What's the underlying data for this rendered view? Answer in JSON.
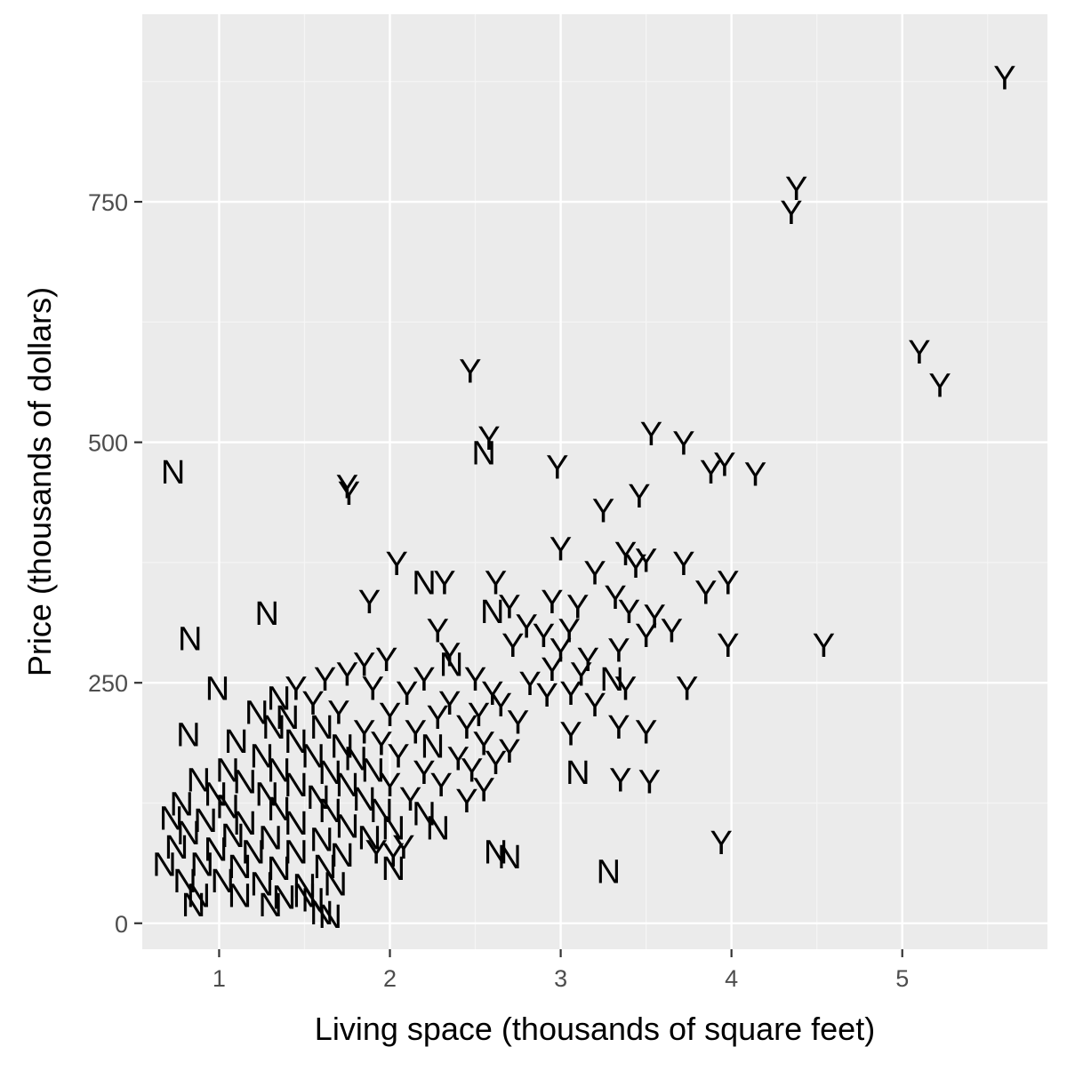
{
  "colors": {
    "panel_background": "#ebebeb",
    "grid_major": "#ffffff",
    "grid_minor": "#f5f5f5",
    "tick": "#333333",
    "tick_label": "#4d4d4d",
    "text": "#000000"
  },
  "chart_data": {
    "type": "scatter",
    "mark": "text",
    "xlabel": "Living space (thousands of square feet)",
    "ylabel": "Price (thousands of dollars)",
    "xlim": [
      0.55,
      5.85
    ],
    "ylim": [
      -27,
      945
    ],
    "x_ticks": [
      1,
      2,
      3,
      4,
      5
    ],
    "y_ticks": [
      0,
      250,
      500,
      750
    ],
    "x_tick_labels": [
      "1",
      "2",
      "3",
      "4",
      "5"
    ],
    "y_tick_labels": [
      "0",
      "250",
      "500",
      "750"
    ],
    "grid": true,
    "legend": "none",
    "points": [
      {
        "x": 5.6,
        "y": 880,
        "label": "Y"
      },
      {
        "x": 4.38,
        "y": 765,
        "label": "Y"
      },
      {
        "x": 4.35,
        "y": 740,
        "label": "Y"
      },
      {
        "x": 5.1,
        "y": 595,
        "label": "Y"
      },
      {
        "x": 5.22,
        "y": 560,
        "label": "Y"
      },
      {
        "x": 2.47,
        "y": 575,
        "label": "Y"
      },
      {
        "x": 2.58,
        "y": 505,
        "label": "Y"
      },
      {
        "x": 2.55,
        "y": 490,
        "label": "N"
      },
      {
        "x": 3.53,
        "y": 510,
        "label": "Y"
      },
      {
        "x": 3.72,
        "y": 500,
        "label": "Y"
      },
      {
        "x": 3.88,
        "y": 470,
        "label": "Y"
      },
      {
        "x": 3.96,
        "y": 478,
        "label": "Y"
      },
      {
        "x": 4.14,
        "y": 468,
        "label": "Y"
      },
      {
        "x": 2.98,
        "y": 475,
        "label": "Y"
      },
      {
        "x": 3.46,
        "y": 445,
        "label": "Y"
      },
      {
        "x": 3.25,
        "y": 430,
        "label": "Y"
      },
      {
        "x": 0.73,
        "y": 470,
        "label": "N"
      },
      {
        "x": 1.75,
        "y": 455,
        "label": "Y"
      },
      {
        "x": 1.76,
        "y": 448,
        "label": "Y"
      },
      {
        "x": 3.0,
        "y": 390,
        "label": "Y"
      },
      {
        "x": 3.38,
        "y": 385,
        "label": "Y"
      },
      {
        "x": 3.5,
        "y": 378,
        "label": "Y"
      },
      {
        "x": 3.72,
        "y": 375,
        "label": "Y"
      },
      {
        "x": 3.2,
        "y": 365,
        "label": "Y"
      },
      {
        "x": 3.44,
        "y": 372,
        "label": "Y"
      },
      {
        "x": 2.04,
        "y": 375,
        "label": "Y"
      },
      {
        "x": 2.2,
        "y": 355,
        "label": "N"
      },
      {
        "x": 2.32,
        "y": 355,
        "label": "Y"
      },
      {
        "x": 2.62,
        "y": 355,
        "label": "Y"
      },
      {
        "x": 3.85,
        "y": 345,
        "label": "Y"
      },
      {
        "x": 3.98,
        "y": 355,
        "label": "Y"
      },
      {
        "x": 1.88,
        "y": 335,
        "label": "Y"
      },
      {
        "x": 1.28,
        "y": 323,
        "label": "N"
      },
      {
        "x": 2.6,
        "y": 325,
        "label": "N"
      },
      {
        "x": 2.7,
        "y": 330,
        "label": "Y"
      },
      {
        "x": 2.95,
        "y": 335,
        "label": "Y"
      },
      {
        "x": 3.1,
        "y": 330,
        "label": "Y"
      },
      {
        "x": 3.32,
        "y": 340,
        "label": "Y"
      },
      {
        "x": 3.4,
        "y": 325,
        "label": "Y"
      },
      {
        "x": 3.55,
        "y": 320,
        "label": "Y"
      },
      {
        "x": 2.28,
        "y": 305,
        "label": "Y"
      },
      {
        "x": 2.8,
        "y": 310,
        "label": "Y"
      },
      {
        "x": 2.9,
        "y": 300,
        "label": "Y"
      },
      {
        "x": 3.05,
        "y": 305,
        "label": "Y"
      },
      {
        "x": 3.5,
        "y": 300,
        "label": "Y"
      },
      {
        "x": 3.65,
        "y": 305,
        "label": "Y"
      },
      {
        "x": 0.83,
        "y": 297,
        "label": "N"
      },
      {
        "x": 3.98,
        "y": 290,
        "label": "Y"
      },
      {
        "x": 4.54,
        "y": 290,
        "label": "Y"
      },
      {
        "x": 2.35,
        "y": 280,
        "label": "Y"
      },
      {
        "x": 2.72,
        "y": 290,
        "label": "Y"
      },
      {
        "x": 3.0,
        "y": 285,
        "label": "Y"
      },
      {
        "x": 3.16,
        "y": 275,
        "label": "Y"
      },
      {
        "x": 3.34,
        "y": 285,
        "label": "Y"
      },
      {
        "x": 1.98,
        "y": 275,
        "label": "Y"
      },
      {
        "x": 2.36,
        "y": 270,
        "label": "N"
      },
      {
        "x": 2.95,
        "y": 265,
        "label": "Y"
      },
      {
        "x": 3.12,
        "y": 260,
        "label": "Y"
      },
      {
        "x": 1.85,
        "y": 270,
        "label": "Y"
      },
      {
        "x": 3.3,
        "y": 255,
        "label": "N"
      },
      {
        "x": 3.38,
        "y": 245,
        "label": "Y"
      },
      {
        "x": 1.62,
        "y": 255,
        "label": "Y"
      },
      {
        "x": 1.75,
        "y": 260,
        "label": "Y"
      },
      {
        "x": 2.2,
        "y": 255,
        "label": "Y"
      },
      {
        "x": 2.5,
        "y": 255,
        "label": "Y"
      },
      {
        "x": 2.82,
        "y": 250,
        "label": "Y"
      },
      {
        "x": 3.74,
        "y": 245,
        "label": "Y"
      },
      {
        "x": 0.99,
        "y": 245,
        "label": "N"
      },
      {
        "x": 1.45,
        "y": 245,
        "label": "Y"
      },
      {
        "x": 1.9,
        "y": 245,
        "label": "Y"
      },
      {
        "x": 2.1,
        "y": 240,
        "label": "Y"
      },
      {
        "x": 2.6,
        "y": 240,
        "label": "Y"
      },
      {
        "x": 2.92,
        "y": 238,
        "label": "Y"
      },
      {
        "x": 3.06,
        "y": 240,
        "label": "Y"
      },
      {
        "x": 1.35,
        "y": 235,
        "label": "N"
      },
      {
        "x": 1.55,
        "y": 230,
        "label": "Y"
      },
      {
        "x": 2.35,
        "y": 230,
        "label": "Y"
      },
      {
        "x": 2.65,
        "y": 228,
        "label": "Y"
      },
      {
        "x": 3.2,
        "y": 228,
        "label": "Y"
      },
      {
        "x": 1.22,
        "y": 220,
        "label": "N"
      },
      {
        "x": 1.4,
        "y": 215,
        "label": "N"
      },
      {
        "x": 1.7,
        "y": 220,
        "label": "Y"
      },
      {
        "x": 2.0,
        "y": 218,
        "label": "Y"
      },
      {
        "x": 2.28,
        "y": 215,
        "label": "Y"
      },
      {
        "x": 2.52,
        "y": 218,
        "label": "Y"
      },
      {
        "x": 2.75,
        "y": 210,
        "label": "Y"
      },
      {
        "x": 1.32,
        "y": 205,
        "label": "N"
      },
      {
        "x": 1.6,
        "y": 205,
        "label": "N"
      },
      {
        "x": 1.85,
        "y": 200,
        "label": "Y"
      },
      {
        "x": 2.15,
        "y": 200,
        "label": "Y"
      },
      {
        "x": 2.45,
        "y": 205,
        "label": "Y"
      },
      {
        "x": 3.34,
        "y": 205,
        "label": "Y"
      },
      {
        "x": 3.5,
        "y": 200,
        "label": "Y"
      },
      {
        "x": 3.06,
        "y": 198,
        "label": "Y"
      },
      {
        "x": 0.82,
        "y": 197,
        "label": "N"
      },
      {
        "x": 1.1,
        "y": 190,
        "label": "N"
      },
      {
        "x": 1.45,
        "y": 190,
        "label": "N"
      },
      {
        "x": 1.72,
        "y": 185,
        "label": "N"
      },
      {
        "x": 1.95,
        "y": 188,
        "label": "Y"
      },
      {
        "x": 2.25,
        "y": 185,
        "label": "N"
      },
      {
        "x": 2.55,
        "y": 188,
        "label": "Y"
      },
      {
        "x": 2.7,
        "y": 180,
        "label": "Y"
      },
      {
        "x": 1.25,
        "y": 175,
        "label": "N"
      },
      {
        "x": 1.55,
        "y": 175,
        "label": "N"
      },
      {
        "x": 1.8,
        "y": 172,
        "label": "N"
      },
      {
        "x": 2.05,
        "y": 175,
        "label": "Y"
      },
      {
        "x": 2.4,
        "y": 172,
        "label": "Y"
      },
      {
        "x": 2.62,
        "y": 168,
        "label": "Y"
      },
      {
        "x": 1.05,
        "y": 160,
        "label": "N"
      },
      {
        "x": 1.35,
        "y": 160,
        "label": "N"
      },
      {
        "x": 1.65,
        "y": 158,
        "label": "N"
      },
      {
        "x": 1.9,
        "y": 160,
        "label": "N"
      },
      {
        "x": 2.2,
        "y": 158,
        "label": "Y"
      },
      {
        "x": 2.48,
        "y": 160,
        "label": "Y"
      },
      {
        "x": 3.1,
        "y": 158,
        "label": "N"
      },
      {
        "x": 3.35,
        "y": 150,
        "label": "Y"
      },
      {
        "x": 3.52,
        "y": 148,
        "label": "Y"
      },
      {
        "x": 0.88,
        "y": 150,
        "label": "N"
      },
      {
        "x": 1.15,
        "y": 148,
        "label": "N"
      },
      {
        "x": 1.45,
        "y": 145,
        "label": "N"
      },
      {
        "x": 1.75,
        "y": 145,
        "label": "N"
      },
      {
        "x": 2.0,
        "y": 145,
        "label": "Y"
      },
      {
        "x": 2.3,
        "y": 145,
        "label": "Y"
      },
      {
        "x": 2.55,
        "y": 140,
        "label": "Y"
      },
      {
        "x": 0.98,
        "y": 135,
        "label": "N"
      },
      {
        "x": 1.28,
        "y": 135,
        "label": "N"
      },
      {
        "x": 1.58,
        "y": 132,
        "label": "N"
      },
      {
        "x": 1.85,
        "y": 130,
        "label": "N"
      },
      {
        "x": 2.12,
        "y": 130,
        "label": "Y"
      },
      {
        "x": 2.45,
        "y": 128,
        "label": "Y"
      },
      {
        "x": 0.78,
        "y": 125,
        "label": "N"
      },
      {
        "x": 1.05,
        "y": 122,
        "label": "N"
      },
      {
        "x": 1.35,
        "y": 120,
        "label": "N"
      },
      {
        "x": 1.65,
        "y": 118,
        "label": "N"
      },
      {
        "x": 1.95,
        "y": 118,
        "label": "N"
      },
      {
        "x": 2.2,
        "y": 115,
        "label": "N"
      },
      {
        "x": 0.72,
        "y": 110,
        "label": "N"
      },
      {
        "x": 0.92,
        "y": 108,
        "label": "N"
      },
      {
        "x": 1.15,
        "y": 105,
        "label": "N"
      },
      {
        "x": 1.45,
        "y": 105,
        "label": "N"
      },
      {
        "x": 1.75,
        "y": 102,
        "label": "N"
      },
      {
        "x": 2.02,
        "y": 100,
        "label": "N"
      },
      {
        "x": 2.28,
        "y": 100,
        "label": "N"
      },
      {
        "x": 0.82,
        "y": 95,
        "label": "N"
      },
      {
        "x": 1.08,
        "y": 92,
        "label": "N"
      },
      {
        "x": 1.3,
        "y": 90,
        "label": "N"
      },
      {
        "x": 1.6,
        "y": 88,
        "label": "N"
      },
      {
        "x": 1.88,
        "y": 90,
        "label": "N"
      },
      {
        "x": 2.08,
        "y": 80,
        "label": "Y"
      },
      {
        "x": 2.02,
        "y": 72,
        "label": "Y"
      },
      {
        "x": 1.92,
        "y": 75,
        "label": "Y"
      },
      {
        "x": 0.75,
        "y": 80,
        "label": "N"
      },
      {
        "x": 0.98,
        "y": 78,
        "label": "N"
      },
      {
        "x": 1.2,
        "y": 75,
        "label": "N"
      },
      {
        "x": 1.45,
        "y": 75,
        "label": "N"
      },
      {
        "x": 1.72,
        "y": 72,
        "label": "N"
      },
      {
        "x": 2.62,
        "y": 75,
        "label": "N"
      },
      {
        "x": 2.7,
        "y": 70,
        "label": "N"
      },
      {
        "x": 3.94,
        "y": 85,
        "label": "Y"
      },
      {
        "x": 0.68,
        "y": 62,
        "label": "N"
      },
      {
        "x": 0.9,
        "y": 62,
        "label": "N"
      },
      {
        "x": 1.12,
        "y": 60,
        "label": "N"
      },
      {
        "x": 1.35,
        "y": 58,
        "label": "N"
      },
      {
        "x": 1.62,
        "y": 60,
        "label": "N"
      },
      {
        "x": 2.02,
        "y": 58,
        "label": "N"
      },
      {
        "x": 3.28,
        "y": 55,
        "label": "N"
      },
      {
        "x": 0.8,
        "y": 45,
        "label": "N"
      },
      {
        "x": 1.02,
        "y": 45,
        "label": "N"
      },
      {
        "x": 1.25,
        "y": 42,
        "label": "N"
      },
      {
        "x": 1.5,
        "y": 40,
        "label": "N"
      },
      {
        "x": 1.68,
        "y": 42,
        "label": "N"
      },
      {
        "x": 0.88,
        "y": 30,
        "label": "N"
      },
      {
        "x": 1.12,
        "y": 30,
        "label": "N"
      },
      {
        "x": 1.38,
        "y": 28,
        "label": "N"
      },
      {
        "x": 1.55,
        "y": 25,
        "label": "N"
      },
      {
        "x": 0.85,
        "y": 20,
        "label": "N"
      },
      {
        "x": 1.3,
        "y": 20,
        "label": "N"
      },
      {
        "x": 1.5,
        "y": 30,
        "label": "N"
      },
      {
        "x": 1.6,
        "y": 12,
        "label": "N"
      },
      {
        "x": 1.65,
        "y": 8,
        "label": "N"
      }
    ]
  }
}
